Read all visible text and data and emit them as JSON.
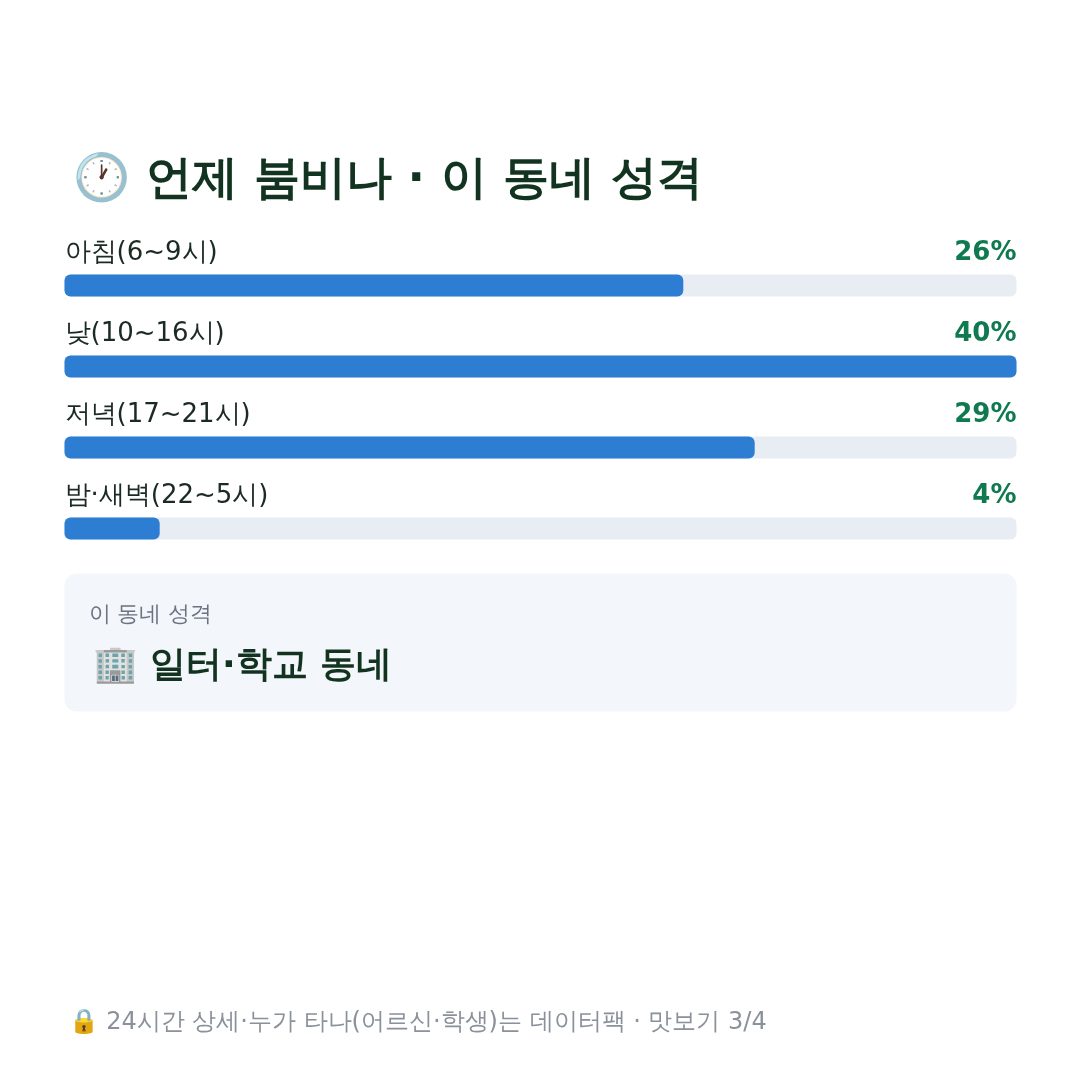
{
  "chart_data": {
    "type": "bar",
    "orientation": "horizontal",
    "title": "🕐 언제 붐비나 · 이 동네 성격",
    "categories": [
      "아침(6~9시)",
      "낮(10~16시)",
      "저녁(17~21시)",
      "밤·새벽(22~5시)"
    ],
    "values": [
      26,
      40,
      29,
      4
    ],
    "value_labels": [
      "26%",
      "40%",
      "29%",
      "4%"
    ],
    "color": "#2d7dd2",
    "annotations": [
      "이 동네 성격",
      "🏢 일터·학교 동네",
      "🔒 24시간 상세·누가 타나(어르신·학생)는 데이터팩 · 맛보기 3/4"
    ]
  }
}
